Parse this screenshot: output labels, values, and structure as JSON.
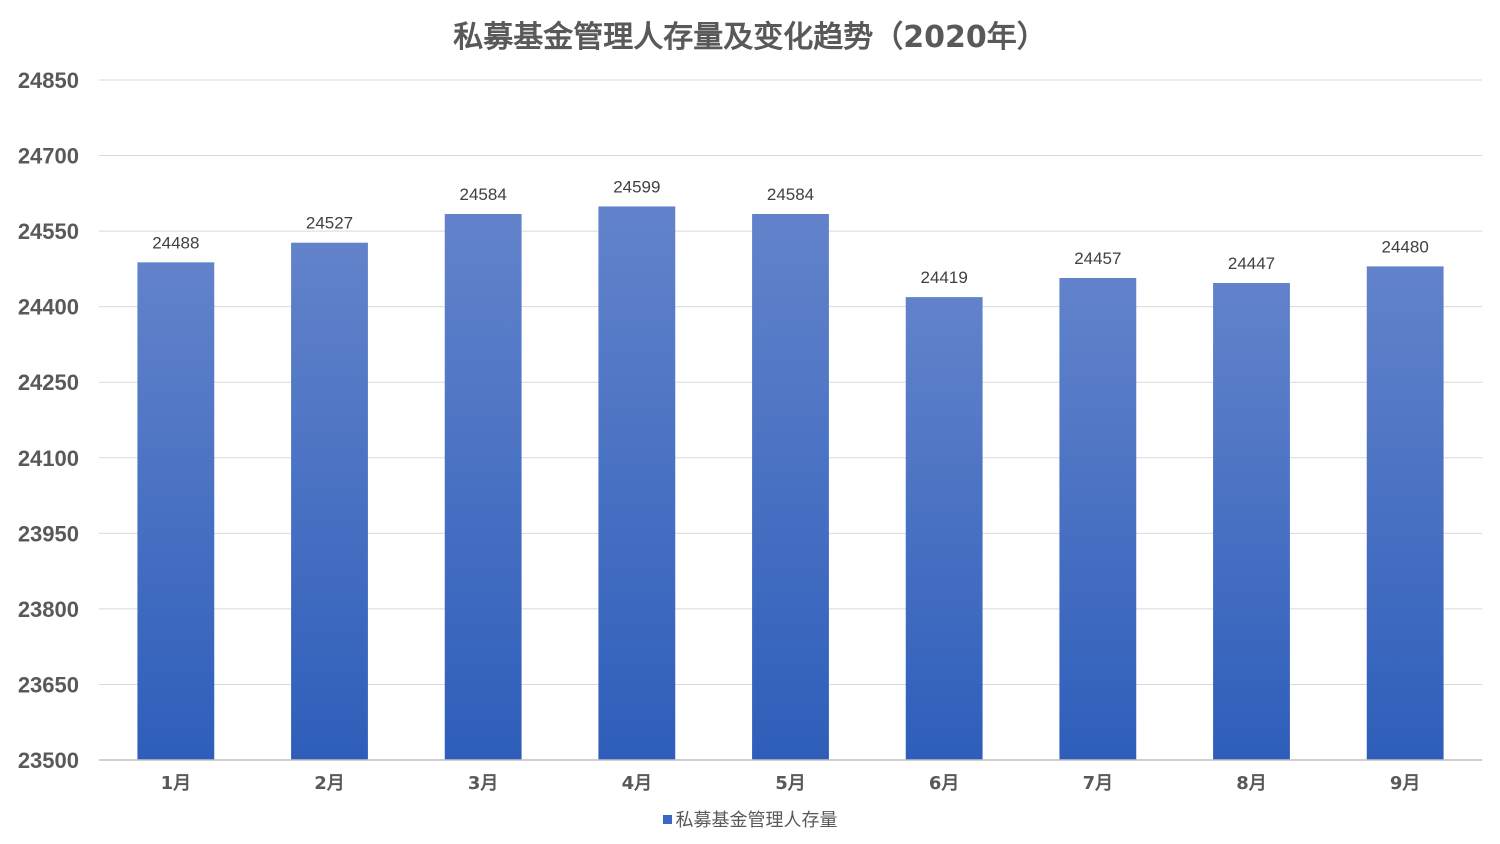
{
  "chart_data": {
    "type": "bar",
    "title": "私募基金管理人存量及变化趋势（2020年）",
    "categories": [
      "1月",
      "2月",
      "3月",
      "4月",
      "5月",
      "6月",
      "7月",
      "8月",
      "9月"
    ],
    "series": [
      {
        "name": "私募基金管理人存量",
        "values": [
          24488,
          24527,
          24584,
          24599,
          24584,
          24419,
          24457,
          24447,
          24480
        ]
      }
    ],
    "ylim": [
      23500,
      24850
    ],
    "yticks": [
      23500,
      23650,
      23800,
      23950,
      24100,
      24250,
      24400,
      24550,
      24700,
      24850
    ],
    "grid": true,
    "legend_position": "bottom",
    "bar_color_top": "#6283CB",
    "bar_color_bottom": "#2E5EBA",
    "legend_color": "#3A67C6"
  }
}
